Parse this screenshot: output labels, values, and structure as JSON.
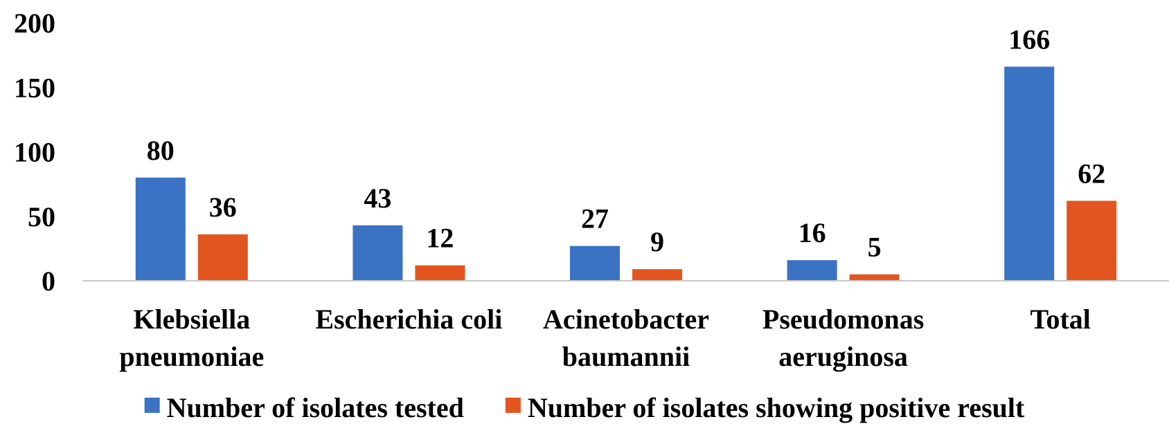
{
  "chart_data": {
    "type": "bar",
    "categories": [
      [
        "Klebsiella",
        "pneumoniae"
      ],
      [
        "Escherichia coli"
      ],
      [
        "Acinetobacter",
        "baumannii"
      ],
      [
        "Pseudomonas",
        "aeruginosa"
      ],
      [
        "Total"
      ]
    ],
    "series": [
      {
        "name": "Number of isolates tested",
        "values": [
          80,
          43,
          27,
          16,
          166
        ],
        "color": "#3A72C4"
      },
      {
        "name": "Number of isolates showing positive result",
        "values": [
          36,
          12,
          9,
          5,
          62
        ],
        "color": "#E2551F"
      }
    ],
    "yticks": [
      0,
      50,
      100,
      150,
      200
    ],
    "ylim": [
      0,
      200
    ],
    "title": "",
    "xlabel": "",
    "ylabel": "",
    "grid": false,
    "legend_position": "bottom",
    "data_labels": true
  }
}
